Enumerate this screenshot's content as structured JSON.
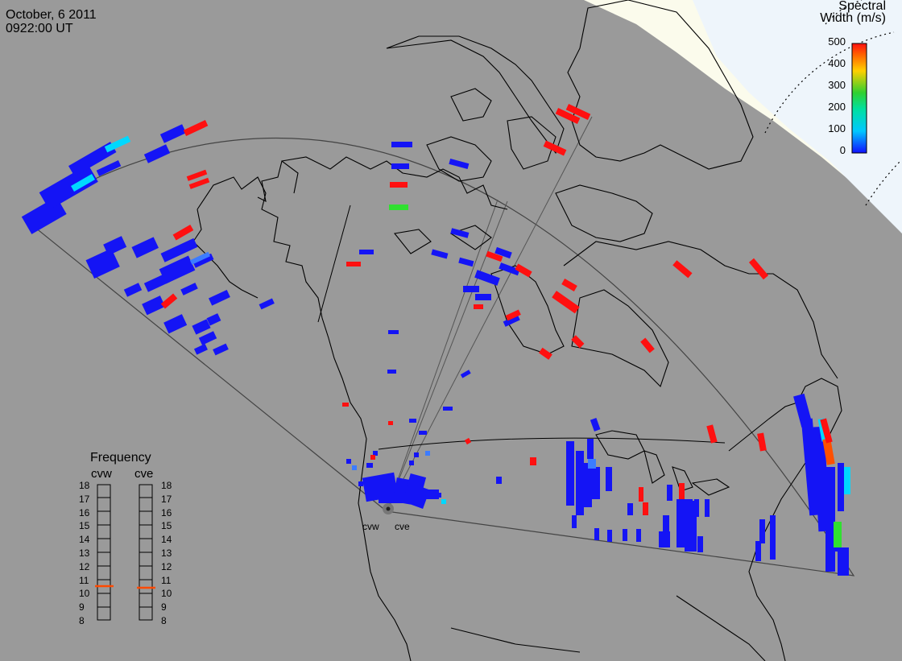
{
  "header": {
    "date": "October, 6 2011",
    "time": "0922:00 UT"
  },
  "legend": {
    "title_line1": "Spectral",
    "title_line2": "Width (m/s)",
    "ticks": [
      "500",
      "400",
      "300",
      "200",
      "100",
      "0"
    ],
    "colors": {
      "min": "#1010ff",
      "low": "#00c8ff",
      "mid": "#30d030",
      "high": "#ffd000",
      "max": "#ff1010"
    }
  },
  "frequency": {
    "title": "Frequency",
    "left_label": "cvw",
    "right_label": "cve",
    "ticks": [
      "18",
      "17",
      "16",
      "15",
      "14",
      "13",
      "12",
      "11",
      "10",
      "9",
      "8"
    ],
    "cvw_value_mhz": 10.5,
    "cve_value_mhz": 10.5,
    "marker_color": "#ff4a00"
  },
  "sites": {
    "west": "cvw",
    "east": "cve"
  }
}
